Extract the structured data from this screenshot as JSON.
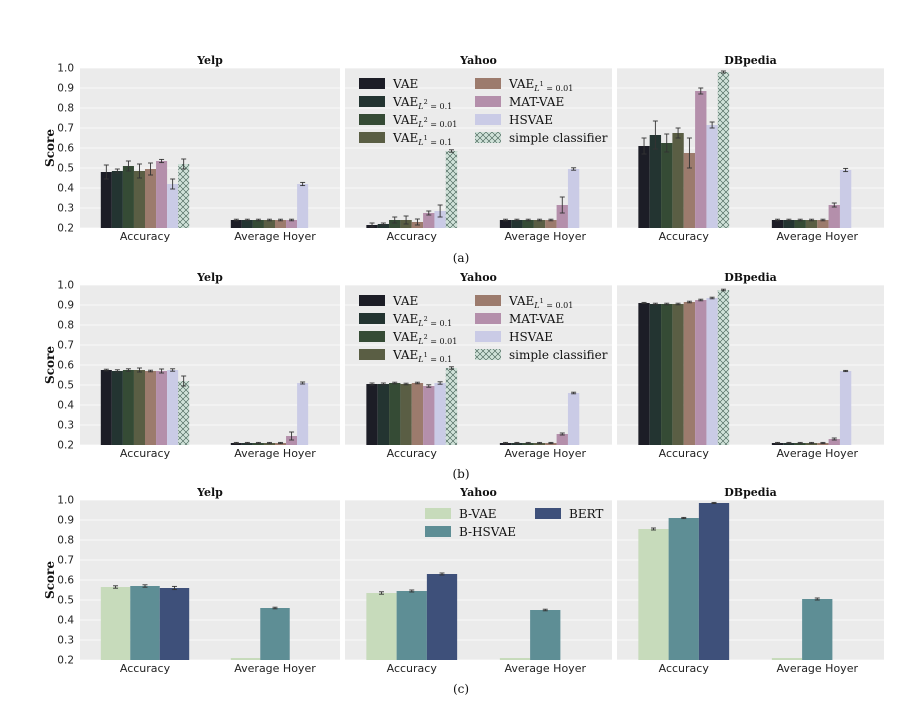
{
  "chart_data": {
    "type": "bar",
    "ylabel": "Score",
    "ylim": [
      0.2,
      1.0
    ],
    "yticks": [
      "0.2",
      "0.3",
      "0.4",
      "0.5",
      "0.6",
      "0.7",
      "0.8",
      "0.9",
      "1.0"
    ],
    "categories": [
      "Accuracy",
      "Average Hoyer"
    ],
    "datasets": [
      "Yelp",
      "Yahoo",
      "DBpedia"
    ],
    "colors": {
      "VAE": "#1c1d26",
      "VAE_L2_0.1": "#233431",
      "VAE_L2_0.01": "#354b35",
      "VAE_L1_0.1": "#5a5e44",
      "VAE_L1_0.01": "#9c7b6d",
      "MAT-VAE": "#b48fab",
      "HSVAE": "#cacbe6",
      "simple classifier": "#cfe1d8",
      "B-VAE": "#c7dbbb",
      "B-HSVAE": "#5e8e95",
      "BERT": "#3e507a"
    },
    "rows": [
      {
        "caption": "(a)",
        "legend_panel": 1,
        "series_names": [
          "VAE",
          "VAE_L2_0.1",
          "VAE_L2_0.01",
          "VAE_L1_0.1",
          "VAE_L1_0.01",
          "MAT-VAE",
          "HSVAE",
          "simple classifier"
        ],
        "panels": [
          {
            "accuracy": [
              0.48,
              0.485,
              0.51,
              0.485,
              0.495,
              0.535,
              0.42,
              0.52
            ],
            "acc_err": [
              0.035,
              0.01,
              0.025,
              0.035,
              0.03,
              0.008,
              0.025,
              0.025
            ],
            "hoyer": [
              0.24,
              0.24,
              0.24,
              0.24,
              0.24,
              0.24,
              0.42,
              null
            ],
            "hoy_err": [
              0.004,
              0.004,
              0.004,
              0.004,
              0.004,
              0.004,
              0.008,
              null
            ]
          },
          {
            "accuracy": [
              0.215,
              0.22,
              0.24,
              0.24,
              0.23,
              0.275,
              0.285,
              0.585
            ],
            "acc_err": [
              0.01,
              0.005,
              0.015,
              0.02,
              0.015,
              0.01,
              0.03,
              0.006
            ],
            "hoyer": [
              0.24,
              0.24,
              0.24,
              0.24,
              0.24,
              0.315,
              0.495,
              null
            ],
            "hoy_err": [
              0.004,
              0.004,
              0.004,
              0.004,
              0.004,
              0.04,
              0.006,
              null
            ]
          },
          {
            "accuracy": [
              0.61,
              0.665,
              0.625,
              0.675,
              0.575,
              0.885,
              0.715,
              0.98
            ],
            "acc_err": [
              0.04,
              0.07,
              0.045,
              0.025,
              0.075,
              0.015,
              0.015,
              0.005
            ],
            "hoyer": [
              0.24,
              0.24,
              0.24,
              0.24,
              0.24,
              0.315,
              0.49,
              null
            ],
            "hoy_err": [
              0.004,
              0.004,
              0.004,
              0.004,
              0.004,
              0.01,
              0.008,
              null
            ]
          }
        ]
      },
      {
        "caption": "(b)",
        "legend_panel": 1,
        "series_names": [
          "VAE",
          "VAE_L2_0.1",
          "VAE_L2_0.01",
          "VAE_L1_0.1",
          "VAE_L1_0.01",
          "MAT-VAE",
          "HSVAE",
          "simple classifier"
        ],
        "panels": [
          {
            "accuracy": [
              0.575,
              0.57,
              0.575,
              0.575,
              0.57,
              0.57,
              0.575,
              0.52
            ],
            "acc_err": [
              0.004,
              0.006,
              0.006,
              0.01,
              0.004,
              0.01,
              0.006,
              0.025
            ],
            "hoyer": [
              0.21,
              0.21,
              0.21,
              0.21,
              0.21,
              0.245,
              0.51,
              null
            ],
            "hoy_err": [
              0.003,
              0.003,
              0.003,
              0.003,
              0.003,
              0.02,
              0.005,
              null
            ]
          },
          {
            "accuracy": [
              0.505,
              0.505,
              0.51,
              0.505,
              0.51,
              0.495,
              0.51,
              0.585
            ],
            "acc_err": [
              0.005,
              0.005,
              0.004,
              0.004,
              0.004,
              0.006,
              0.006,
              0.006
            ],
            "hoyer": [
              0.21,
              0.21,
              0.21,
              0.21,
              0.21,
              0.255,
              0.46,
              null
            ],
            "hoy_err": [
              0.003,
              0.003,
              0.003,
              0.003,
              0.003,
              0.005,
              0.004,
              null
            ]
          },
          {
            "accuracy": [
              0.91,
              0.905,
              0.905,
              0.905,
              0.915,
              0.925,
              0.935,
              0.975
            ],
            "acc_err": [
              0.003,
              0.004,
              0.004,
              0.004,
              0.004,
              0.004,
              0.004,
              0.004
            ],
            "hoyer": [
              0.21,
              0.21,
              0.21,
              0.21,
              0.21,
              0.23,
              0.57,
              null
            ],
            "hoy_err": [
              0.003,
              0.003,
              0.003,
              0.003,
              0.003,
              0.005,
              0.003,
              null
            ]
          }
        ]
      },
      {
        "caption": "(c)",
        "legend_panel": 1,
        "series_names": [
          "B-VAE",
          "B-HSVAE",
          "BERT"
        ],
        "panels": [
          {
            "accuracy": [
              0.565,
              0.57,
              0.56
            ],
            "acc_err": [
              0.006,
              0.006,
              0.008
            ],
            "hoyer": [
              0.21,
              0.46,
              null
            ],
            "hoy_err": [
              0.0,
              0.004,
              null
            ]
          },
          {
            "accuracy": [
              0.535,
              0.545,
              0.63
            ],
            "acc_err": [
              0.006,
              0.005,
              0.005
            ],
            "hoyer": [
              0.21,
              0.45,
              null
            ],
            "hoy_err": [
              0.0,
              0.004,
              null
            ]
          },
          {
            "accuracy": [
              0.855,
              0.91,
              0.985
            ],
            "acc_err": [
              0.005,
              0.003,
              0.003
            ],
            "hoyer": [
              0.21,
              0.505,
              null
            ],
            "hoy_err": [
              0.0,
              0.005,
              null
            ]
          }
        ]
      }
    ]
  }
}
